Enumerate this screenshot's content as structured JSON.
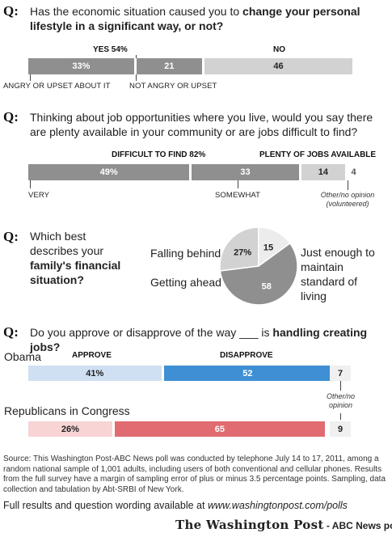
{
  "q_marker": "Q:",
  "q1": {
    "text_pre": "Has the economic situation caused you to ",
    "text_bold": "change your personal lifestyle in a significant way, or not?",
    "yes_header": "YES 54%",
    "no_header": "NO",
    "labels": [
      "ANGRY OR UPSET ABOUT IT",
      "NOT ANGRY OR UPSET"
    ]
  },
  "q2": {
    "text": "Thinking about job opportunities where you live, would you say there are plenty available in your community or are jobs difficult to find?",
    "difficult_header": "DIFFICULT TO FIND 82%",
    "plenty_header": "PLENTY OF JOBS AVAILABLE",
    "labels": [
      "VERY",
      "SOMEWHAT"
    ],
    "note_line1": "Other/no opinion",
    "note_line2": "(volunteered)"
  },
  "q3": {
    "text_pre": "Which best describes your ",
    "text_bold": "family's financial situation?",
    "labels": {
      "behind": "Falling behind",
      "ahead": "Getting ahead",
      "enough": "Just enough to maintain standard of living"
    }
  },
  "q4": {
    "text_pre": "Do you approve or disapprove of the way ___ is ",
    "text_bold": "handling creating jobs?",
    "obama_label": "Obama",
    "republicans_label": "Republicans in Congress",
    "approve_header": "APPROVE",
    "disapprove_header": "DISAPPROVE",
    "note_line1": "Other/no",
    "note_line2": "opinion"
  },
  "source": "Source: This Washington Post-ABC News poll was conducted by telephone July 14 to 17, 2011, among a random national sample of 1,001 adults, including users of both conventional and cellular phones. Results from the full survey have a margin of sampling error of plus or minus 3.5 percentage points. Sampling, data collection and tabulation by Abt-SRBI of New York.",
  "full_results_pre": "Full results and question wording available at ",
  "full_results_url": "www.washingtonpost.com/polls",
  "brand": "The Washington Post",
  "brand_suffix": " - ABC News poll",
  "colors": {
    "dark_gray": "#8f8f8f",
    "light_gray": "#d2d2d2",
    "lighter_gray": "#ececec",
    "approve_blue": "#cfe0f2",
    "disapprove_blue": "#3f8fd4",
    "approve_pink": "#f8d4d5",
    "disapprove_red": "#e06b70"
  },
  "chart_data": [
    {
      "type": "bar",
      "title": "Has the economic situation caused you to change your personal lifestyle in a significant way, or not?",
      "categories": [
        "Angry or upset about it",
        "Not angry or upset",
        "No"
      ],
      "values": [
        33,
        21,
        46
      ],
      "value_labels": [
        "33%",
        "21",
        "46"
      ]
    },
    {
      "type": "bar",
      "title": "Thinking about job opportunities where you live, would you say there are plenty available in your community or are jobs difficult to find?",
      "categories": [
        "Very",
        "Somewhat",
        "Plenty of jobs available",
        "Other/no opinion (volunteered)"
      ],
      "values": [
        49,
        33,
        14,
        4
      ],
      "value_labels": [
        "49%",
        "33",
        "14",
        "4"
      ]
    },
    {
      "type": "pie",
      "title": "Which best describes your family's financial situation?",
      "categories": [
        "Falling behind",
        "Getting ahead",
        "Just enough to maintain standard of living"
      ],
      "values": [
        27,
        15,
        58
      ],
      "value_labels": [
        "27%",
        "15",
        "58"
      ]
    },
    {
      "type": "bar",
      "title": "Do you approve or disapprove of the way ___ is handling creating jobs?",
      "categories": [
        "Approve",
        "Disapprove",
        "Other/no opinion"
      ],
      "series": [
        {
          "name": "Obama",
          "values": [
            41,
            52,
            7
          ],
          "value_labels": [
            "41%",
            "52",
            "7"
          ]
        },
        {
          "name": "Republicans in Congress",
          "values": [
            26,
            65,
            9
          ],
          "value_labels": [
            "26%",
            "65",
            "9"
          ]
        }
      ]
    }
  ]
}
